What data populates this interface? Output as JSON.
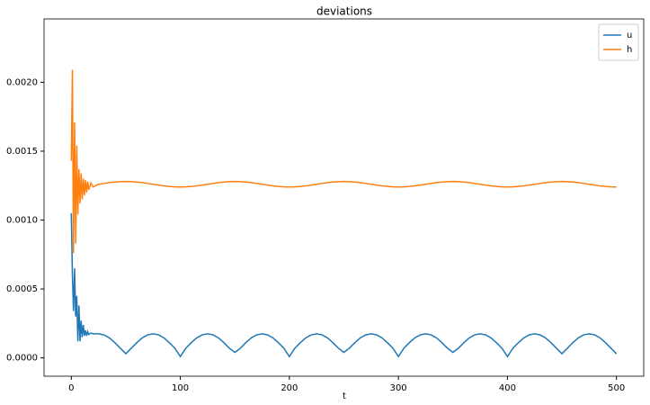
{
  "chart_data": {
    "type": "line",
    "title": "deviations",
    "x_label": "t",
    "x": [
      0,
      1,
      2,
      3,
      4,
      5,
      6,
      7,
      8,
      9,
      10,
      11,
      12,
      13,
      14,
      15,
      16,
      18,
      20,
      25,
      30,
      35,
      40,
      45,
      50,
      55,
      60,
      65,
      70,
      75,
      80,
      85,
      90,
      95,
      100,
      105,
      110,
      115,
      120,
      125,
      130,
      135,
      140,
      145,
      150,
      155,
      160,
      165,
      170,
      175,
      180,
      185,
      190,
      195,
      200,
      205,
      210,
      215,
      220,
      225,
      230,
      235,
      240,
      245,
      250,
      255,
      260,
      265,
      270,
      275,
      280,
      285,
      290,
      295,
      300,
      305,
      310,
      315,
      320,
      325,
      330,
      335,
      340,
      345,
      350,
      355,
      360,
      365,
      370,
      375,
      380,
      385,
      390,
      395,
      400,
      405,
      410,
      415,
      420,
      425,
      430,
      435,
      440,
      445,
      450,
      455,
      460,
      465,
      470,
      475,
      480,
      485,
      490,
      495,
      500
    ],
    "series": [
      {
        "name": "u",
        "color": "#1f77b4",
        "values": [
          0.00105,
          0.0006,
          0.00034,
          0.00065,
          0.0003,
          0.00045,
          0.00012,
          0.00038,
          0.00012,
          0.00027,
          0.00015,
          0.00024,
          0.00016,
          0.0002,
          0.00016,
          0.00019,
          0.00017,
          0.00018,
          0.000175,
          0.000175,
          0.000167,
          0.000145,
          0.00011,
          7e-05,
          3e-05,
          7e-05,
          0.00011,
          0.000145,
          0.000167,
          0.000175,
          0.000167,
          0.000145,
          0.00011,
          7e-05,
          1e-05,
          7e-05,
          0.00011,
          0.000145,
          0.000167,
          0.000175,
          0.000167,
          0.000145,
          0.00011,
          7e-05,
          4e-05,
          7e-05,
          0.00011,
          0.000145,
          0.000167,
          0.000175,
          0.000167,
          0.000145,
          0.00011,
          7e-05,
          1e-05,
          7e-05,
          0.00011,
          0.000145,
          0.000167,
          0.000175,
          0.000167,
          0.000145,
          0.00011,
          7e-05,
          4e-05,
          7e-05,
          0.00011,
          0.000145,
          0.000167,
          0.000175,
          0.000167,
          0.000145,
          0.00011,
          7e-05,
          1e-05,
          7e-05,
          0.00011,
          0.000145,
          0.000167,
          0.000175,
          0.000167,
          0.000145,
          0.00011,
          7e-05,
          4e-05,
          7e-05,
          0.00011,
          0.000145,
          0.000167,
          0.000175,
          0.000167,
          0.000145,
          0.00011,
          7e-05,
          1e-05,
          7e-05,
          0.00011,
          0.000145,
          0.000167,
          0.000175,
          0.000167,
          0.000145,
          0.00011,
          7e-05,
          3e-05,
          7e-05,
          0.00011,
          0.000145,
          0.000167,
          0.000175,
          0.000167,
          0.000145,
          0.00011,
          7e-05,
          3e-05
        ]
      },
      {
        "name": "h",
        "color": "#ff7f0e",
        "values": [
          0.00143,
          0.00209,
          0.00076,
          0.00171,
          0.00083,
          0.00154,
          0.00104,
          0.00137,
          0.00112,
          0.00134,
          0.00115,
          0.0013,
          0.00118,
          0.00129,
          0.0012,
          0.00128,
          0.00122,
          0.00127,
          0.00124,
          0.00126,
          0.001266,
          0.001272,
          0.001276,
          0.001279,
          0.00128,
          0.001279,
          0.001276,
          0.001272,
          0.001266,
          0.00126,
          0.001254,
          0.001248,
          0.001244,
          0.001241,
          0.00124,
          0.001241,
          0.001244,
          0.001248,
          0.001254,
          0.00126,
          0.001266,
          0.001272,
          0.001276,
          0.001279,
          0.00128,
          0.001279,
          0.001276,
          0.001272,
          0.001266,
          0.00126,
          0.001254,
          0.001248,
          0.001244,
          0.001241,
          0.00124,
          0.001241,
          0.001244,
          0.001248,
          0.001254,
          0.00126,
          0.001266,
          0.001272,
          0.001276,
          0.001279,
          0.00128,
          0.001279,
          0.001276,
          0.001272,
          0.001266,
          0.00126,
          0.001254,
          0.001248,
          0.001244,
          0.001241,
          0.00124,
          0.001241,
          0.001244,
          0.001248,
          0.001254,
          0.00126,
          0.001266,
          0.001272,
          0.001276,
          0.001279,
          0.00128,
          0.001279,
          0.001276,
          0.001272,
          0.001266,
          0.00126,
          0.001254,
          0.001248,
          0.001244,
          0.001241,
          0.00124,
          0.001241,
          0.001244,
          0.001248,
          0.001254,
          0.00126,
          0.001266,
          0.001272,
          0.001276,
          0.001279,
          0.00128,
          0.001279,
          0.001276,
          0.001272,
          0.001266,
          0.00126,
          0.001254,
          0.001248,
          0.001244,
          0.001241,
          0.00124
        ]
      }
    ],
    "xlim": [
      -25,
      525
    ],
    "xticks": [
      0,
      100,
      200,
      300,
      400,
      500
    ],
    "ylim": [
      -0.000133,
      0.00246
    ],
    "yticks": [
      {
        "value": 0,
        "label": "0.0000"
      },
      {
        "value": 0.0005,
        "label": "0.0005"
      },
      {
        "value": 0.001,
        "label": "0.0010"
      },
      {
        "value": 0.0015,
        "label": "0.0015"
      },
      {
        "value": 0.002,
        "label": "0.0020"
      }
    ],
    "grid": false,
    "legend": "upper right"
  }
}
